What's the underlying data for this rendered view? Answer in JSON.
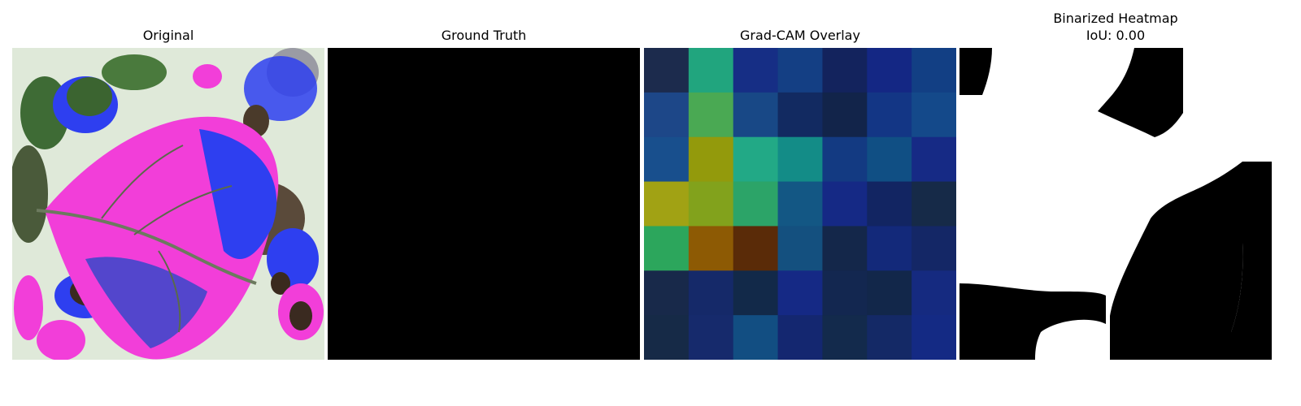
{
  "panels": {
    "original": {
      "title": "Original"
    },
    "ground_truth": {
      "title": "Ground Truth"
    },
    "gradcam": {
      "title": "Grad-CAM Overlay",
      "grid": [
        [
          "#1c2b4d",
          "#21a57e",
          "#162e85",
          "#143f84",
          "#13235d",
          "#142784",
          "#123f84"
        ],
        [
          "#1d4788",
          "#4aa953",
          "#184886",
          "#122a61",
          "#12244a",
          "#133685",
          "#14498a"
        ],
        [
          "#184f8d",
          "#939a0c",
          "#22a986",
          "#138c87",
          "#133a82",
          "#104f84",
          "#162a85"
        ],
        [
          "#a1a214",
          "#82a21c",
          "#2ca468",
          "#135784",
          "#152985",
          "#122562",
          "#162a48"
        ],
        [
          "#2ca65c",
          "#8d5a04",
          "#5a2b08",
          "#14507f",
          "#14274a",
          "#13297a",
          "#142766"
        ],
        [
          "#18294a",
          "#152969",
          "#122949",
          "#152985",
          "#132750",
          "#12274a",
          "#152a80"
        ],
        [
          "#162a47",
          "#162a6c",
          "#124e82",
          "#142770",
          "#132a4c",
          "#142966",
          "#142a84"
        ]
      ]
    },
    "binarized": {
      "title": "Binarized Heatmap",
      "subtitle": "IoU: 0.00"
    }
  },
  "colors": {
    "leaf_magenta": "#f23ed9",
    "leaf_blue": "#2e3ff0",
    "background_pale": "#dfe9d9",
    "ground_truth": "#000000",
    "mask_fg": "#ffffff",
    "mask_bg": "#000000"
  }
}
